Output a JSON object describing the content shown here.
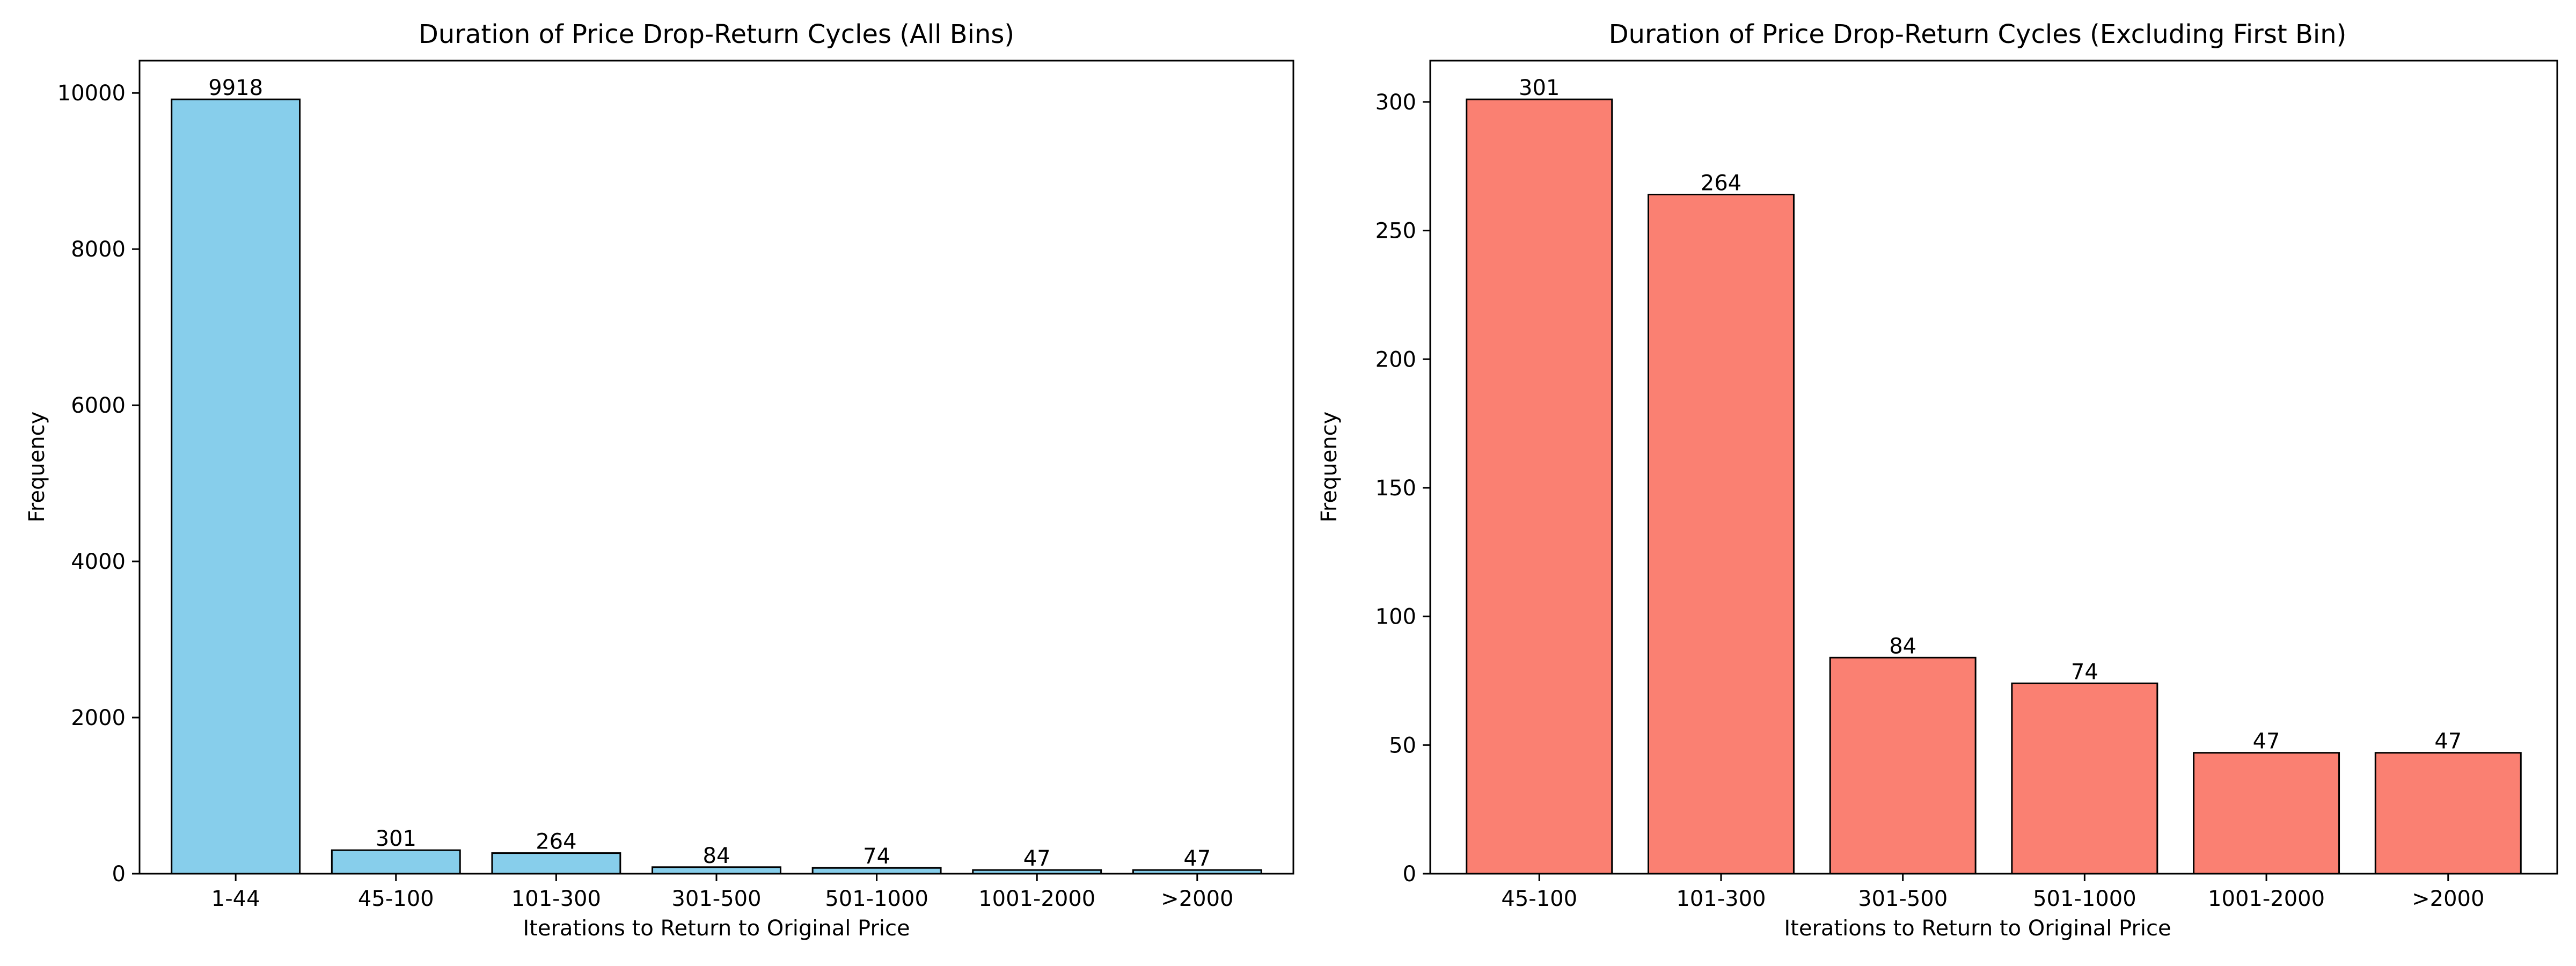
{
  "chart_data": [
    {
      "type": "bar",
      "title": "Duration of Price Drop-Return Cycles (All Bins)",
      "xlabel": "Iterations to Return to Original Price",
      "ylabel": "Frequency",
      "categories": [
        "1-44",
        "45-100",
        "101-300",
        "301-500",
        "501-1000",
        "1001-2000",
        ">2000"
      ],
      "values": [
        9918,
        301,
        264,
        84,
        74,
        47,
        47
      ],
      "data_labels": [
        "9918",
        "301",
        "264",
        "84",
        "74",
        "47",
        "47"
      ],
      "ylim": [
        0,
        10413.9
      ],
      "yticks": [
        0,
        2000,
        4000,
        6000,
        8000,
        10000
      ],
      "ytick_labels": [
        "0",
        "2000",
        "4000",
        "6000",
        "8000",
        "10000"
      ],
      "bar_color": "#87CEEB",
      "edge_color": "#000000",
      "grid": false
    },
    {
      "type": "bar",
      "title": "Duration of Price Drop-Return Cycles (Excluding First Bin)",
      "xlabel": "Iterations to Return to Original Price",
      "ylabel": "Frequency",
      "categories": [
        "45-100",
        "101-300",
        "301-500",
        "501-1000",
        "1001-2000",
        ">2000"
      ],
      "values": [
        301,
        264,
        84,
        74,
        47,
        47
      ],
      "data_labels": [
        "301",
        "264",
        "84",
        "74",
        "47",
        "47"
      ],
      "ylim": [
        0,
        316.05
      ],
      "yticks": [
        0,
        50,
        100,
        150,
        200,
        250,
        300
      ],
      "ytick_labels": [
        "0",
        "50",
        "100",
        "150",
        "200",
        "250",
        "300"
      ],
      "bar_color": "#FA8072",
      "edge_color": "#000000",
      "grid": false
    }
  ]
}
